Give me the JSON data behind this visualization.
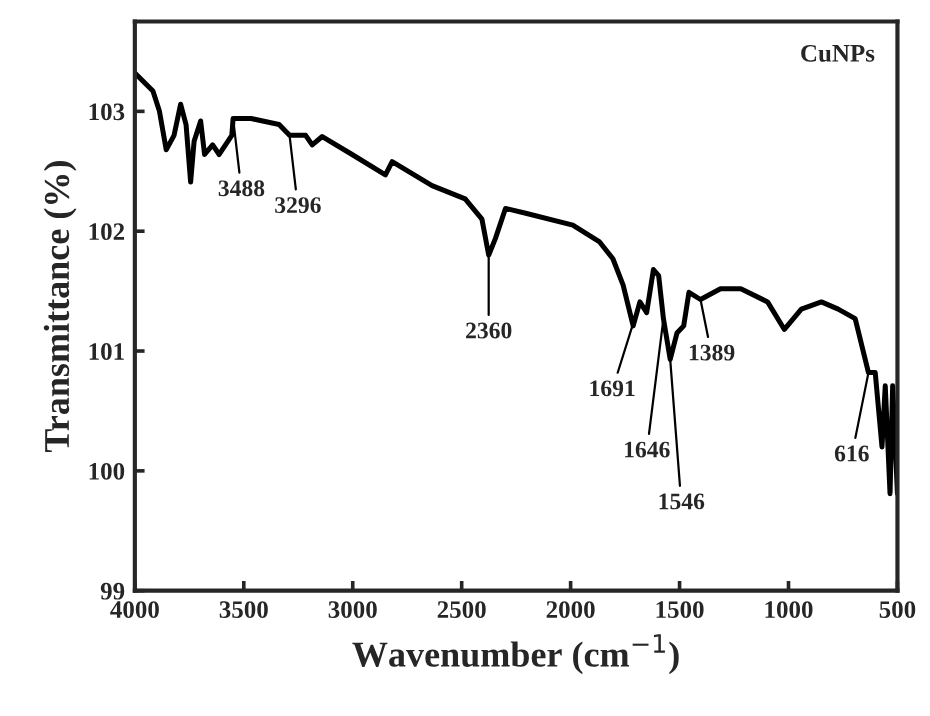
{
  "chart_data": {
    "type": "line",
    "xlabel": "Wavenumber (cm$^{−1}$)",
    "ylabel": "Transmittance (%)",
    "xlim": [
      4000,
      500
    ],
    "ylim": [
      99,
      103.75
    ],
    "xticks": [
      4000,
      3500,
      3000,
      2500,
      2000,
      1500,
      1000,
      500
    ],
    "yticks": [
      99,
      100,
      101,
      102,
      103
    ],
    "grid": false,
    "legend": "top right",
    "series": [
      {
        "name": "CuNPs",
        "color": "#000000",
        "x": [
          4000,
          3917,
          3887,
          3856,
          3820,
          3790,
          3765,
          3744,
          3728,
          3698,
          3680,
          3643,
          3613,
          3555,
          3549,
          3466,
          3338,
          3290,
          3216,
          3186,
          3140,
          3003,
          2850,
          2819,
          2636,
          2484,
          2407,
          2376,
          2345,
          2299,
          2206,
          1990,
          1867,
          1806,
          1759,
          1713,
          1682,
          1651,
          1620,
          1596,
          1574,
          1543,
          1512,
          1481,
          1457,
          1404,
          1312,
          1219,
          1096,
          1019,
          941,
          849,
          772,
          694,
          633,
          602,
          571,
          556,
          534,
          522,
          500
        ],
        "values": [
          103.32,
          103.17,
          103.0,
          102.68,
          102.8,
          103.06,
          102.89,
          102.41,
          102.75,
          102.92,
          102.64,
          102.72,
          102.64,
          102.8,
          102.94,
          102.94,
          102.89,
          102.8,
          102.8,
          102.72,
          102.79,
          102.64,
          102.47,
          102.58,
          102.38,
          102.27,
          102.1,
          101.8,
          101.94,
          102.19,
          102.15,
          102.05,
          101.91,
          101.77,
          101.55,
          101.21,
          101.41,
          101.32,
          101.68,
          101.63,
          101.27,
          100.93,
          101.15,
          101.21,
          101.49,
          101.43,
          101.52,
          101.52,
          101.41,
          101.18,
          101.35,
          101.41,
          101.35,
          101.27,
          100.82,
          100.82,
          100.2,
          100.71,
          99.81,
          100.71,
          99.81
        ]
      }
    ],
    "annotations": [
      {
        "text": "3488",
        "x": 3549,
        "y": 102.94
      },
      {
        "text": "3296",
        "x": 3290,
        "y": 102.8
      },
      {
        "text": "2360",
        "x": 2376,
        "y": 101.8
      },
      {
        "text": "1691",
        "x": 1682,
        "y": 101.41
      },
      {
        "text": "1646",
        "x": 1574,
        "y": 101.27
      },
      {
        "text": "1546",
        "x": 1543,
        "y": 100.93
      },
      {
        "text": "1389",
        "x": 1404,
        "y": 101.43
      },
      {
        "text": "616",
        "x": 633,
        "y": 100.82
      }
    ]
  }
}
